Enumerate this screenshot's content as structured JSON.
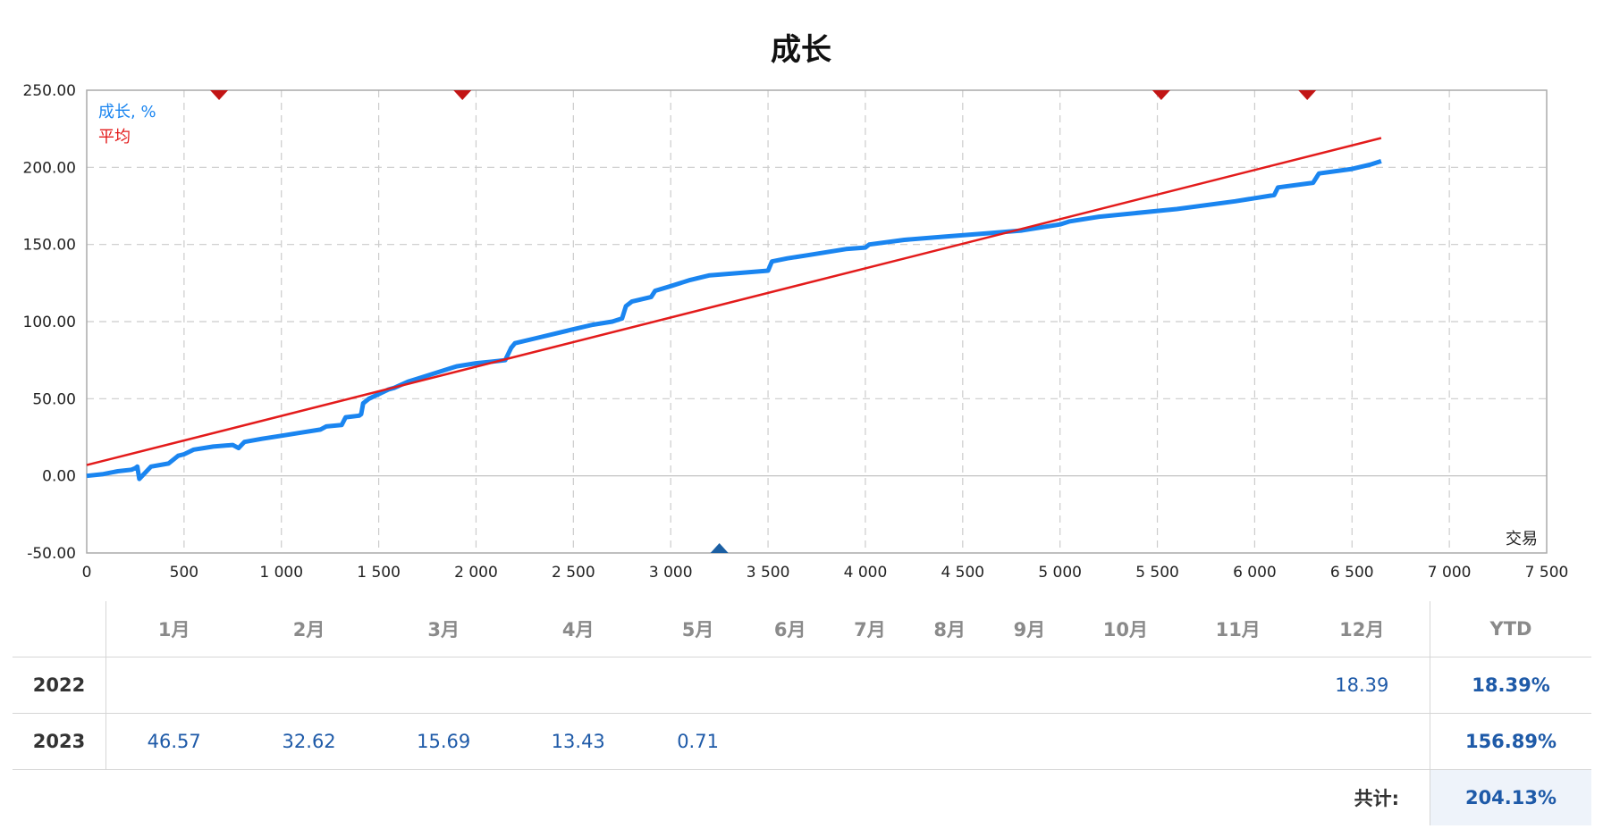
{
  "chart_data": {
    "type": "line",
    "title": "成长",
    "xlabel": "交易",
    "ylabel": "",
    "xlim": [
      0,
      7500
    ],
    "ylim": [
      -50,
      250
    ],
    "x_ticks": [
      0,
      500,
      1000,
      1500,
      2000,
      2500,
      3000,
      3500,
      4000,
      4500,
      5000,
      5500,
      6000,
      6500,
      7000,
      7500
    ],
    "x_tick_labels": [
      "0",
      "500",
      "1 000",
      "1 500",
      "2 000",
      "2 500",
      "3 000",
      "3 500",
      "4 000",
      "4 500",
      "5 000",
      "5 500",
      "6 000",
      "6 500",
      "7 000",
      "7 500"
    ],
    "y_ticks": [
      250,
      200,
      150,
      100,
      50,
      0,
      -50
    ],
    "y_tick_labels": [
      "250.00",
      "200.00",
      "150.00",
      "100.00",
      "50.00",
      "0.00",
      "-50.00"
    ],
    "grid": true,
    "legend_placement": "top-left",
    "series": [
      {
        "name": "成长, %",
        "color": "#1a85f0",
        "x": [
          0,
          80,
          120,
          160,
          230,
          250,
          260,
          270,
          330,
          420,
          440,
          470,
          500,
          550,
          600,
          650,
          750,
          780,
          810,
          900,
          1000,
          1100,
          1200,
          1230,
          1310,
          1330,
          1400,
          1410,
          1420,
          1450,
          1500,
          1550,
          1580,
          1650,
          1700,
          1800,
          1900,
          2000,
          2080,
          2150,
          2180,
          2200,
          2300,
          2400,
          2500,
          2600,
          2700,
          2750,
          2770,
          2800,
          2900,
          2920,
          3000,
          3100,
          3200,
          3300,
          3400,
          3500,
          3520,
          3600,
          3700,
          3800,
          3900,
          4000,
          4020,
          4200,
          4400,
          4600,
          4800,
          5000,
          5050,
          5200,
          5600,
          5900,
          6100,
          6120,
          6300,
          6330,
          6500,
          6600,
          6650
        ],
        "values": [
          0,
          1,
          2,
          3,
          4,
          5,
          6,
          -2,
          6,
          8,
          10,
          13,
          14,
          17,
          18,
          19,
          20,
          18,
          22,
          24,
          26,
          28,
          30,
          32,
          33,
          38,
          39,
          40,
          47,
          50,
          53,
          56,
          57,
          61,
          63,
          67,
          71,
          73,
          74,
          75,
          83,
          86,
          89,
          92,
          95,
          98,
          100,
          102,
          110,
          113,
          116,
          120,
          123,
          127,
          130,
          131,
          132,
          133,
          139,
          141,
          143,
          145,
          147,
          148,
          150,
          153,
          155,
          157,
          159,
          163,
          165,
          168,
          173,
          178,
          182,
          187,
          190,
          196,
          199,
          202,
          204
        ]
      },
      {
        "name": "平均",
        "color": "#e31b1b",
        "x": [
          0,
          6650
        ],
        "values": [
          7,
          219
        ]
      }
    ],
    "markers": {
      "top_down_triangles_x": [
        680,
        1930,
        5520,
        6270
      ],
      "bottom_up_triangles_x": [
        3250
      ]
    }
  },
  "table": {
    "month_headers": [
      "1月",
      "2月",
      "3月",
      "4月",
      "5月",
      "6月",
      "7月",
      "8月",
      "9月",
      "10月",
      "11月",
      "12月"
    ],
    "ytd_header": "YTD",
    "rows": [
      {
        "year": "2022",
        "months": [
          "",
          "",
          "",
          "",
          "",
          "",
          "",
          "",
          "",
          "",
          "",
          "18.39"
        ],
        "ytd": "18.39%"
      },
      {
        "year": "2023",
        "months": [
          "46.57",
          "32.62",
          "15.69",
          "13.43",
          "0.71",
          "",
          "",
          "",
          "",
          "",
          "",
          ""
        ],
        "ytd": "156.89%"
      }
    ],
    "total_label": "共计:",
    "total_value": "204.13%"
  }
}
